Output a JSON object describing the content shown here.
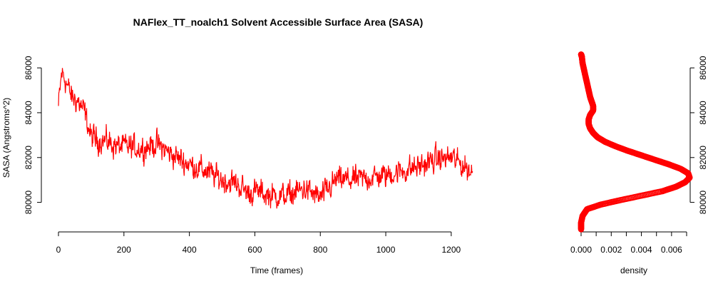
{
  "chart_data": [
    {
      "type": "line",
      "title": "NAFlex_TT_noalch1 Solvent Accessible Surface Area (SASA)",
      "xlabel": "Time (frames)",
      "ylabel": "SASA (Angstroms^2)",
      "xlim": [
        0,
        1270
      ],
      "ylim": [
        79000,
        86800
      ],
      "x_ticks": [
        0,
        200,
        400,
        600,
        800,
        1000,
        1200
      ],
      "y_ticks": [
        80000,
        82000,
        84000,
        86000
      ],
      "grid": false,
      "color": "#ff0000",
      "series": [
        {
          "x": [
            0,
            10,
            20,
            30,
            40,
            60,
            80,
            100,
            120,
            150,
            180,
            200,
            250,
            300,
            350,
            400,
            450,
            500,
            550,
            580,
            600,
            650,
            700,
            750,
            800,
            850,
            900,
            950,
            1000,
            1050,
            1100,
            1150,
            1200,
            1230,
            1250,
            1265
          ],
          "values": [
            84300,
            85800,
            85500,
            85100,
            84700,
            84500,
            84000,
            82900,
            82800,
            82700,
            82500,
            82500,
            82400,
            82600,
            82100,
            81700,
            81400,
            81000,
            80800,
            80400,
            80500,
            80300,
            80300,
            80600,
            80200,
            81000,
            81000,
            81100,
            81200,
            81400,
            81600,
            81900,
            82000,
            81700,
            81500,
            81300
          ]
        }
      ]
    },
    {
      "type": "scatter",
      "title": "",
      "xlabel": "density",
      "ylabel": "",
      "xlim": [
        0,
        0.007
      ],
      "ylim": [
        79000,
        86800
      ],
      "x_ticks": [
        "0.000",
        "0.002",
        "0.004",
        "0.006"
      ],
      "y_ticks": [
        80000,
        82000,
        84000,
        86000
      ],
      "y_axis_side": "right",
      "color": "#ff0000",
      "series": [
        {
          "y": [
            78800,
            79100,
            79400,
            79700,
            79900,
            80100,
            80300,
            80500,
            80700,
            80900,
            81100,
            81300,
            81500,
            81700,
            81900,
            82100,
            82300,
            82500,
            82700,
            82900,
            83100,
            83300,
            83500,
            83700,
            83900,
            84100,
            84300,
            84500,
            84700,
            85000,
            85300,
            85600,
            85900,
            86200,
            86500,
            86600
          ],
          "values": [
            0.0,
            0.0,
            0.0001,
            0.0004,
            0.0013,
            0.0026,
            0.004,
            0.0054,
            0.0063,
            0.0069,
            0.0072,
            0.0071,
            0.0066,
            0.0058,
            0.0049,
            0.004,
            0.0031,
            0.0023,
            0.0016,
            0.0011,
            0.0008,
            0.0006,
            0.0005,
            0.0005,
            0.0006,
            0.0008,
            0.0008,
            0.0007,
            0.0006,
            0.0005,
            0.0004,
            0.0003,
            0.0002,
            0.0001,
            5e-05,
            0.0
          ]
        }
      ]
    }
  ]
}
